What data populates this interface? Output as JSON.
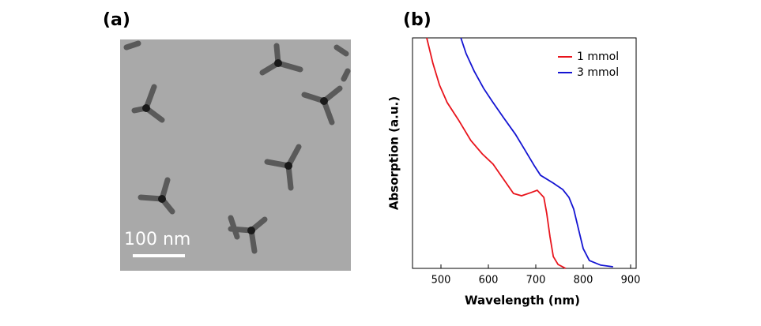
{
  "panel_a": {
    "label": "(a)",
    "scale_bar": "100 nm"
  },
  "chart_data": {
    "type": "line",
    "panel_label": "(b)",
    "x_label": "Wavelength (nm)",
    "y_label": "Absorption (a.u.)",
    "xlim": [
      440,
      900
    ],
    "xticks": [
      500,
      600,
      700,
      800,
      900
    ],
    "ylim": [
      0,
      1
    ],
    "legend": "upper right",
    "series": [
      {
        "name": "1 mmol",
        "color": "#e8141c",
        "x": [
          470,
          483,
          497,
          513,
          537,
          563,
          587,
          610,
          633,
          653,
          670,
          690,
          703,
          717,
          723,
          730,
          737,
          747,
          763
        ],
        "values": [
          1.0,
          0.89,
          0.795,
          0.72,
          0.644,
          0.555,
          0.497,
          0.452,
          0.384,
          0.325,
          0.315,
          0.329,
          0.339,
          0.308,
          0.24,
          0.137,
          0.051,
          0.017,
          0
        ]
      },
      {
        "name": "3 mmol",
        "color": "#1414d2",
        "x": [
          542,
          553,
          570,
          590,
          610,
          633,
          657,
          677,
          697,
          710,
          737,
          757,
          770,
          780,
          790,
          800,
          813,
          837,
          863
        ],
        "values": [
          1.0,
          0.932,
          0.856,
          0.781,
          0.719,
          0.651,
          0.582,
          0.514,
          0.445,
          0.404,
          0.37,
          0.342,
          0.308,
          0.257,
          0.171,
          0.086,
          0.034,
          0.014,
          0.007
        ]
      }
    ]
  }
}
